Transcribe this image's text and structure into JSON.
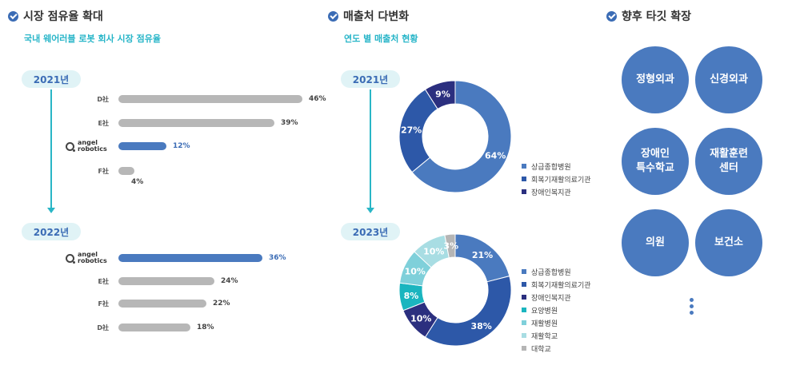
{
  "sections": {
    "market": {
      "title": "시장 점유율 확대",
      "subtitle": "국내 웨어러블 로봇 회사 시장 점유율"
    },
    "sales": {
      "title": "매출처 다변화",
      "subtitle": "연도 별 매출처 현황"
    },
    "target": {
      "title": "향후 타깃 확장"
    }
  },
  "logo": {
    "line1": "angel",
    "line2": "robotics"
  },
  "colors": {
    "highlight": "#4a7abf",
    "gray": "#b7b7b7",
    "accent": "#29b6c6"
  },
  "chart_data": [
    {
      "type": "bar",
      "orientation": "horizontal",
      "period": "2021년",
      "categories": [
        "D社",
        "E社",
        "angel robotics",
        "F社"
      ],
      "values": [
        46,
        39,
        12,
        4
      ],
      "labels": [
        "46%",
        "39%",
        "12%",
        "4%"
      ],
      "highlight": "angel robotics",
      "xlim": [
        0,
        50
      ]
    },
    {
      "type": "bar",
      "orientation": "horizontal",
      "period": "2022년",
      "categories": [
        "angel robotics",
        "E社",
        "F社",
        "D社"
      ],
      "values": [
        36,
        24,
        22,
        18
      ],
      "labels": [
        "36%",
        "24%",
        "22%",
        "18%"
      ],
      "highlight": "angel robotics",
      "xlim": [
        0,
        50
      ]
    },
    {
      "type": "pie",
      "variant": "donut",
      "period": "2021년",
      "categories": [
        "상급종합병원",
        "회복기재활의료기관",
        "장애인복지관"
      ],
      "values": [
        64,
        27,
        9
      ],
      "labels": [
        "64%",
        "27%",
        "9%"
      ],
      "colors": [
        "#4a7abf",
        "#2d58a8",
        "#2b2f7f"
      ]
    },
    {
      "type": "pie",
      "variant": "donut",
      "period": "2023년",
      "categories": [
        "상급종합병원",
        "회복기재활의료기관",
        "장애인복지관",
        "요양병원",
        "재활병원",
        "재활학교",
        "대학교"
      ],
      "values": [
        21,
        38,
        10,
        8,
        10,
        10,
        3
      ],
      "labels": [
        "21%",
        "38%",
        "10%",
        "8%",
        "10%",
        "10%",
        "3%"
      ],
      "colors": [
        "#4a7abf",
        "#2d58a8",
        "#2b2f7f",
        "#1ab5bf",
        "#7fd0da",
        "#a8dde3",
        "#b5b5b5"
      ]
    }
  ],
  "targets": [
    "정형외과",
    "신경외과",
    "장애인\n특수학교",
    "재활훈련\n센터",
    "의원",
    "보건소"
  ]
}
